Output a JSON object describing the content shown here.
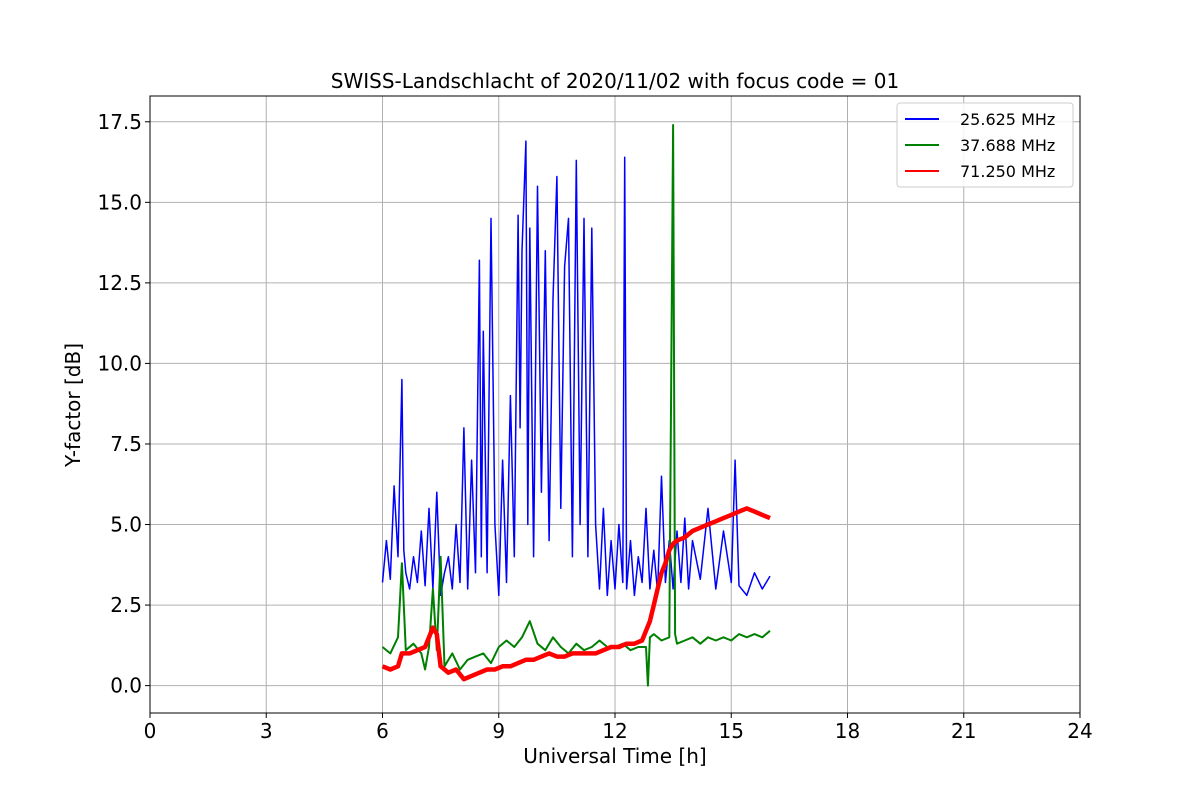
{
  "chart_data": {
    "type": "line",
    "title": "SWISS-Landschlacht of 2020/11/02 with focus code = 01",
    "xlabel": "Universal Time [h]",
    "ylabel": "Y-factor [dB]",
    "xlim": [
      0,
      24
    ],
    "ylim": [
      -0.85,
      18.3
    ],
    "x_ticks": [
      0,
      3,
      6,
      9,
      12,
      15,
      18,
      21,
      24
    ],
    "x_tick_labels": [
      "0",
      "3",
      "6",
      "9",
      "12",
      "15",
      "18",
      "21",
      "24"
    ],
    "y_ticks": [
      0.0,
      2.5,
      5.0,
      7.5,
      10.0,
      12.5,
      15.0,
      17.5
    ],
    "y_tick_labels": [
      "0.0",
      "2.5",
      "5.0",
      "7.5",
      "10.0",
      "12.5",
      "15.0",
      "17.5"
    ],
    "grid": true,
    "legend_position": "top-right",
    "series": [
      {
        "name": "25.625 MHz",
        "color": "#0000ff",
        "x": [
          6.0,
          6.1,
          6.2,
          6.3,
          6.4,
          6.5,
          6.55,
          6.6,
          6.7,
          6.8,
          6.9,
          7.0,
          7.1,
          7.2,
          7.3,
          7.4,
          7.5,
          7.6,
          7.7,
          7.8,
          7.9,
          8.0,
          8.1,
          8.2,
          8.3,
          8.4,
          8.5,
          8.55,
          8.6,
          8.7,
          8.8,
          8.9,
          9.0,
          9.1,
          9.2,
          9.3,
          9.4,
          9.5,
          9.55,
          9.6,
          9.7,
          9.75,
          9.8,
          9.9,
          10.0,
          10.1,
          10.2,
          10.3,
          10.4,
          10.5,
          10.6,
          10.7,
          10.8,
          10.9,
          11.0,
          11.1,
          11.2,
          11.3,
          11.4,
          11.5,
          11.6,
          11.7,
          11.8,
          11.9,
          12.0,
          12.1,
          12.2,
          12.25,
          12.3,
          12.4,
          12.5,
          12.6,
          12.7,
          12.8,
          12.9,
          13.0,
          13.1,
          13.2,
          13.3,
          13.4,
          13.5,
          13.6,
          13.7,
          13.8,
          13.9,
          14.0,
          14.2,
          14.4,
          14.6,
          14.8,
          15.0,
          15.1,
          15.2,
          15.4,
          15.6,
          15.8,
          16.0
        ],
        "values": [
          3.2,
          4.5,
          3.3,
          6.2,
          4.0,
          9.5,
          4.2,
          3.5,
          3.0,
          4.0,
          3.2,
          4.8,
          3.1,
          5.5,
          3.0,
          6.0,
          2.8,
          3.5,
          4.0,
          3.0,
          5.0,
          3.2,
          8.0,
          3.0,
          7.0,
          3.5,
          13.2,
          4.0,
          11.0,
          3.5,
          14.5,
          5.0,
          2.8,
          7.0,
          3.2,
          9.0,
          4.0,
          14.6,
          8.0,
          13.5,
          16.9,
          5.0,
          14.2,
          4.0,
          15.5,
          6.0,
          13.5,
          4.5,
          12.0,
          15.8,
          5.5,
          13.0,
          14.5,
          4.0,
          16.3,
          5.0,
          14.5,
          4.0,
          14.2,
          5.0,
          3.0,
          5.5,
          2.8,
          4.5,
          3.0,
          5.0,
          3.2,
          16.4,
          3.0,
          4.5,
          2.8,
          4.0,
          3.2,
          5.5,
          3.0,
          4.2,
          2.9,
          6.5,
          3.2,
          4.5,
          3.0,
          4.8,
          3.2,
          5.2,
          3.0,
          4.5,
          3.3,
          5.5,
          3.0,
          4.8,
          3.2,
          7.0,
          3.1,
          2.8,
          3.5,
          3.0,
          3.4
        ]
      },
      {
        "name": "37.688 MHz",
        "color": "#008000",
        "x": [
          6.0,
          6.2,
          6.4,
          6.5,
          6.6,
          6.8,
          7.0,
          7.1,
          7.2,
          7.3,
          7.4,
          7.5,
          7.6,
          7.8,
          8.0,
          8.2,
          8.4,
          8.6,
          8.8,
          9.0,
          9.2,
          9.4,
          9.6,
          9.8,
          10.0,
          10.2,
          10.4,
          10.6,
          10.8,
          11.0,
          11.2,
          11.4,
          11.6,
          11.8,
          12.0,
          12.2,
          12.4,
          12.6,
          12.8,
          12.85,
          12.9,
          13.0,
          13.2,
          13.4,
          13.5,
          13.55,
          13.6,
          13.8,
          14.0,
          14.2,
          14.4,
          14.6,
          14.8,
          15.0,
          15.2,
          15.4,
          15.6,
          15.8,
          16.0
        ],
        "values": [
          1.2,
          1.0,
          1.5,
          3.8,
          1.1,
          1.3,
          1.0,
          0.5,
          1.2,
          3.0,
          1.1,
          4.0,
          0.6,
          1.0,
          0.5,
          0.8,
          0.9,
          1.0,
          0.7,
          1.2,
          1.4,
          1.2,
          1.5,
          2.0,
          1.3,
          1.1,
          1.5,
          1.2,
          1.0,
          1.3,
          1.1,
          1.2,
          1.4,
          1.2,
          1.2,
          1.3,
          1.1,
          1.2,
          1.2,
          0.0,
          1.5,
          1.6,
          1.4,
          1.5,
          17.4,
          1.6,
          1.3,
          1.4,
          1.5,
          1.3,
          1.5,
          1.4,
          1.5,
          1.4,
          1.6,
          1.5,
          1.6,
          1.5,
          1.7
        ]
      },
      {
        "name": "71.250 MHz",
        "color": "#ff0000",
        "x": [
          6.0,
          6.2,
          6.4,
          6.5,
          6.7,
          6.9,
          7.1,
          7.3,
          7.4,
          7.5,
          7.7,
          7.9,
          8.1,
          8.3,
          8.5,
          8.7,
          8.9,
          9.1,
          9.3,
          9.5,
          9.7,
          9.9,
          10.1,
          10.3,
          10.5,
          10.7,
          10.9,
          11.1,
          11.3,
          11.5,
          11.7,
          11.9,
          12.1,
          12.3,
          12.5,
          12.7,
          12.8,
          12.9,
          13.0,
          13.1,
          13.2,
          13.3,
          13.4,
          13.5,
          13.6,
          13.8,
          14.0,
          14.2,
          14.4,
          14.6,
          14.8,
          15.0,
          15.2,
          15.4,
          15.6,
          15.8,
          16.0
        ],
        "values": [
          0.6,
          0.5,
          0.6,
          1.0,
          1.0,
          1.1,
          1.2,
          1.8,
          1.6,
          0.6,
          0.4,
          0.5,
          0.2,
          0.3,
          0.4,
          0.5,
          0.5,
          0.6,
          0.6,
          0.7,
          0.8,
          0.8,
          0.9,
          1.0,
          0.9,
          0.9,
          1.0,
          1.0,
          1.0,
          1.0,
          1.1,
          1.2,
          1.2,
          1.3,
          1.3,
          1.4,
          1.7,
          2.0,
          2.5,
          3.0,
          3.5,
          3.8,
          4.2,
          4.4,
          4.5,
          4.6,
          4.8,
          4.9,
          5.0,
          5.1,
          5.2,
          5.3,
          5.4,
          5.5,
          5.4,
          5.3,
          5.2
        ]
      }
    ]
  }
}
